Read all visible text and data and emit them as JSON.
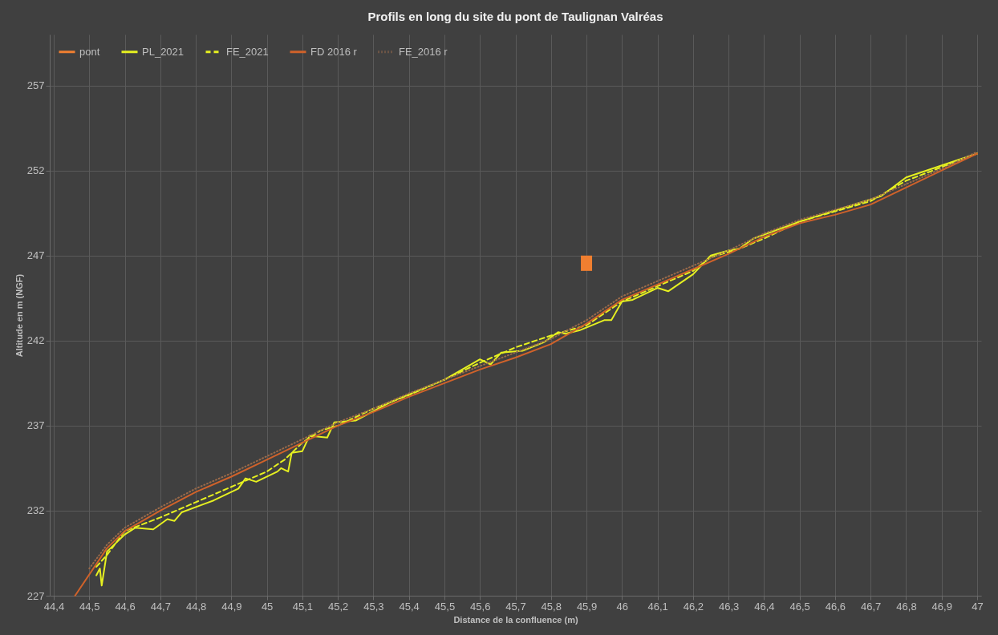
{
  "chart_data": {
    "type": "line",
    "title": "Profils en long du site du pont de Taulignan Valréas",
    "xlabel": "Distance de la confluence (m)",
    "ylabel": "Altitude en m (NGF)",
    "xlim": [
      44.4,
      47
    ],
    "ylim": [
      227,
      260
    ],
    "xticks": [
      {
        "value": 44.4,
        "label": "44,4"
      },
      {
        "value": 44.5,
        "label": "44,5"
      },
      {
        "value": 44.6,
        "label": "44,6"
      },
      {
        "value": 44.7,
        "label": "44,7"
      },
      {
        "value": 44.8,
        "label": "44,8"
      },
      {
        "value": 44.9,
        "label": "44,9"
      },
      45,
      {
        "value": 45.1,
        "label": "45,1"
      },
      {
        "value": 45.2,
        "label": "45,2"
      },
      {
        "value": 45.3,
        "label": "45,3"
      },
      {
        "value": 45.4,
        "label": "45,4"
      },
      {
        "value": 45.5,
        "label": "45,5"
      },
      {
        "value": 45.6,
        "label": "45,6"
      },
      {
        "value": 45.7,
        "label": "45,7"
      },
      {
        "value": 45.8,
        "label": "45,8"
      },
      {
        "value": 45.9,
        "label": "45,9"
      },
      46,
      {
        "value": 46.1,
        "label": "46,1"
      },
      {
        "value": 46.2,
        "label": "46,2"
      },
      {
        "value": 46.3,
        "label": "46,3"
      },
      {
        "value": 46.4,
        "label": "46,4"
      },
      {
        "value": 46.5,
        "label": "46,5"
      },
      {
        "value": 46.6,
        "label": "46,6"
      },
      {
        "value": 46.7,
        "label": "46,7"
      },
      {
        "value": 46.8,
        "label": "46,8"
      },
      {
        "value": 46.9,
        "label": "46,9"
      },
      47
    ],
    "yticks": [
      227,
      232,
      237,
      242,
      247,
      252,
      257
    ],
    "grid": true,
    "legend": "top left",
    "series": [
      {
        "name": "pont",
        "type": "bar",
        "color": "#f07f30",
        "x": [
          45.9
        ],
        "base": [
          246.1
        ],
        "values": [
          0.9
        ]
      },
      {
        "name": "PL_2021",
        "color": "#e6f020",
        "line_style": "solid",
        "x": [
          44.52,
          44.53,
          44.535,
          44.55,
          44.6,
          44.63,
          44.68,
          44.72,
          44.74,
          44.76,
          44.85,
          44.92,
          44.94,
          44.97,
          45.03,
          45.04,
          45.06,
          45.07,
          45.1,
          45.12,
          45.17,
          45.19,
          45.25,
          45.35,
          45.5,
          45.6,
          45.63,
          45.66,
          45.72,
          45.78,
          45.82,
          45.84,
          45.88,
          45.95,
          45.97,
          46.0,
          46.03,
          46.1,
          46.13,
          46.2,
          46.25,
          46.3,
          46.33,
          46.37,
          46.5,
          46.7,
          46.73,
          46.8,
          47.0
        ],
        "values": [
          228.2,
          228.6,
          227.6,
          229.6,
          230.6,
          231.0,
          230.9,
          231.5,
          231.4,
          231.9,
          232.6,
          233.3,
          233.9,
          233.7,
          234.3,
          234.5,
          234.3,
          235.4,
          235.5,
          236.4,
          236.3,
          237.2,
          237.3,
          238.4,
          239.7,
          240.9,
          240.6,
          241.3,
          241.4,
          241.9,
          242.5,
          242.4,
          242.6,
          243.2,
          243.2,
          244.3,
          244.4,
          245.1,
          244.9,
          245.9,
          247.0,
          247.3,
          247.4,
          248.0,
          249.0,
          250.3,
          250.5,
          251.6,
          253.0
        ]
      },
      {
        "name": "FE_2021",
        "color": "#e6f020",
        "line_style": "dashed",
        "x": [
          44.52,
          44.55,
          44.6,
          44.7,
          44.8,
          44.9,
          45.0,
          45.05,
          45.1,
          45.15,
          45.2,
          45.3,
          45.4,
          45.5,
          45.6,
          45.7,
          45.8,
          45.9,
          46.0,
          46.1,
          46.2,
          46.25,
          46.33,
          46.4,
          46.5,
          46.6,
          46.7,
          46.8,
          47.0
        ],
        "values": [
          228.7,
          229.4,
          230.8,
          231.6,
          232.5,
          233.4,
          234.3,
          235.0,
          236.0,
          236.7,
          237.0,
          238.0,
          238.8,
          239.7,
          240.7,
          241.6,
          242.3,
          242.9,
          244.3,
          245.2,
          246.1,
          246.9,
          247.4,
          248.0,
          249.0,
          249.6,
          250.2,
          251.4,
          253.0
        ]
      },
      {
        "name": "FD 2016 r",
        "color": "#d0622a",
        "line_style": "solid",
        "x": [
          44.46,
          44.55,
          44.6,
          44.7,
          44.8,
          44.9,
          45.0,
          45.1,
          45.2,
          45.3,
          45.4,
          45.5,
          45.6,
          45.7,
          45.8,
          45.9,
          46.0,
          46.1,
          46.2,
          46.3,
          46.4,
          46.5,
          46.6,
          46.7,
          46.8,
          46.9,
          47.0
        ],
        "values": [
          227.0,
          229.8,
          230.8,
          232.0,
          233.1,
          234.0,
          235.0,
          236.0,
          237.0,
          237.8,
          238.7,
          239.5,
          240.3,
          241.0,
          241.8,
          243.0,
          244.4,
          245.3,
          246.2,
          247.1,
          248.1,
          248.9,
          249.4,
          250.0,
          251.0,
          252.0,
          253.0
        ]
      },
      {
        "name": "FE_2016 r",
        "color": "#9a6a4a",
        "line_style": "dotted",
        "x": [
          44.5,
          44.55,
          44.6,
          44.7,
          44.8,
          44.9,
          45.0,
          45.1,
          45.2,
          45.3,
          45.4,
          45.5,
          45.6,
          45.7,
          45.8,
          45.9,
          46.0,
          46.1,
          46.2,
          46.3,
          46.4,
          46.5,
          46.6,
          46.7,
          46.8,
          46.9,
          47.0
        ],
        "values": [
          228.6,
          230.0,
          231.0,
          232.2,
          233.3,
          234.2,
          235.2,
          236.2,
          237.2,
          238.0,
          238.9,
          239.7,
          240.5,
          241.3,
          242.1,
          243.2,
          244.6,
          245.5,
          246.4,
          247.3,
          248.3,
          249.1,
          249.7,
          250.3,
          251.2,
          252.1,
          253.1
        ]
      }
    ]
  }
}
